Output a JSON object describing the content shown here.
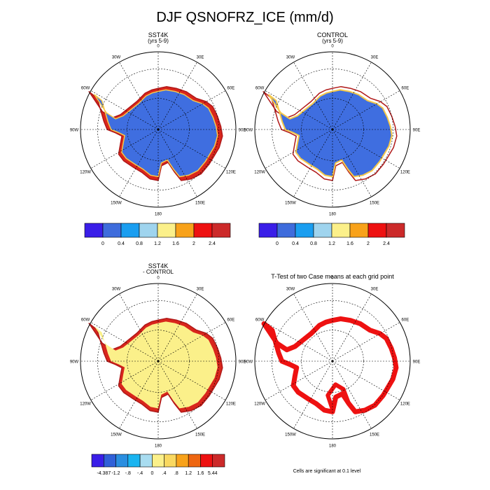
{
  "title": "DJF QSNOFRZ_ICE (mm/d)",
  "polar_labels": [
    "0",
    "30E",
    "60E",
    "90E",
    "120E",
    "150E",
    "180",
    "150W",
    "120W",
    "90W",
    "60W",
    "30W"
  ],
  "palette": {
    "land_fill_main": "#3f6ee0",
    "coast_red": "#d9261c",
    "coast_dark": "#b01818",
    "diff_fill": "#fbf08a",
    "ttest_red": "#ee1111"
  },
  "chart_data": [
    {
      "type": "heatmap",
      "id": "sst4k",
      "title": "SST4K",
      "subtitle": "(yrs 5-9)",
      "projection": "south-polar-stereographic"
    },
    {
      "type": "heatmap",
      "id": "control",
      "title": "CONTROL",
      "subtitle": "(yrs 5-9)",
      "projection": "south-polar-stereographic"
    },
    {
      "type": "heatmap",
      "id": "diff",
      "title": "SST4K",
      "subtitle": "- CONTROL",
      "projection": "south-polar-stereographic"
    },
    {
      "type": "heatmap",
      "id": "ttest",
      "title": "T-Test of two Case means at each grid point",
      "subtitle": "",
      "note": "Cells are significant at 0.1 level",
      "projection": "south-polar-stereographic"
    }
  ],
  "colorbar_main": {
    "colors": [
      "#3a1ee8",
      "#3e6cdc",
      "#1a9ef0",
      "#9fd4ee",
      "#fbf08a",
      "#f8a21a",
      "#ee1111",
      "#cc2a2a"
    ],
    "labels": [
      "0",
      "0.4",
      "0.8",
      "1.2",
      "1.6",
      "2",
      "2.4"
    ]
  },
  "colorbar_diff": {
    "colors": [
      "#3a1ee8",
      "#3060d8",
      "#2a8ee0",
      "#1ab4f0",
      "#a8dcf0",
      "#fbf08a",
      "#f9d860",
      "#f8a21a",
      "#ee6611",
      "#ee1111",
      "#cc2a2a"
    ],
    "labels": [
      "-4.387",
      "-1.2",
      "-.8",
      "-.4",
      "0",
      ".4",
      ".8",
      "1.2",
      "1.6",
      "5.44"
    ]
  }
}
